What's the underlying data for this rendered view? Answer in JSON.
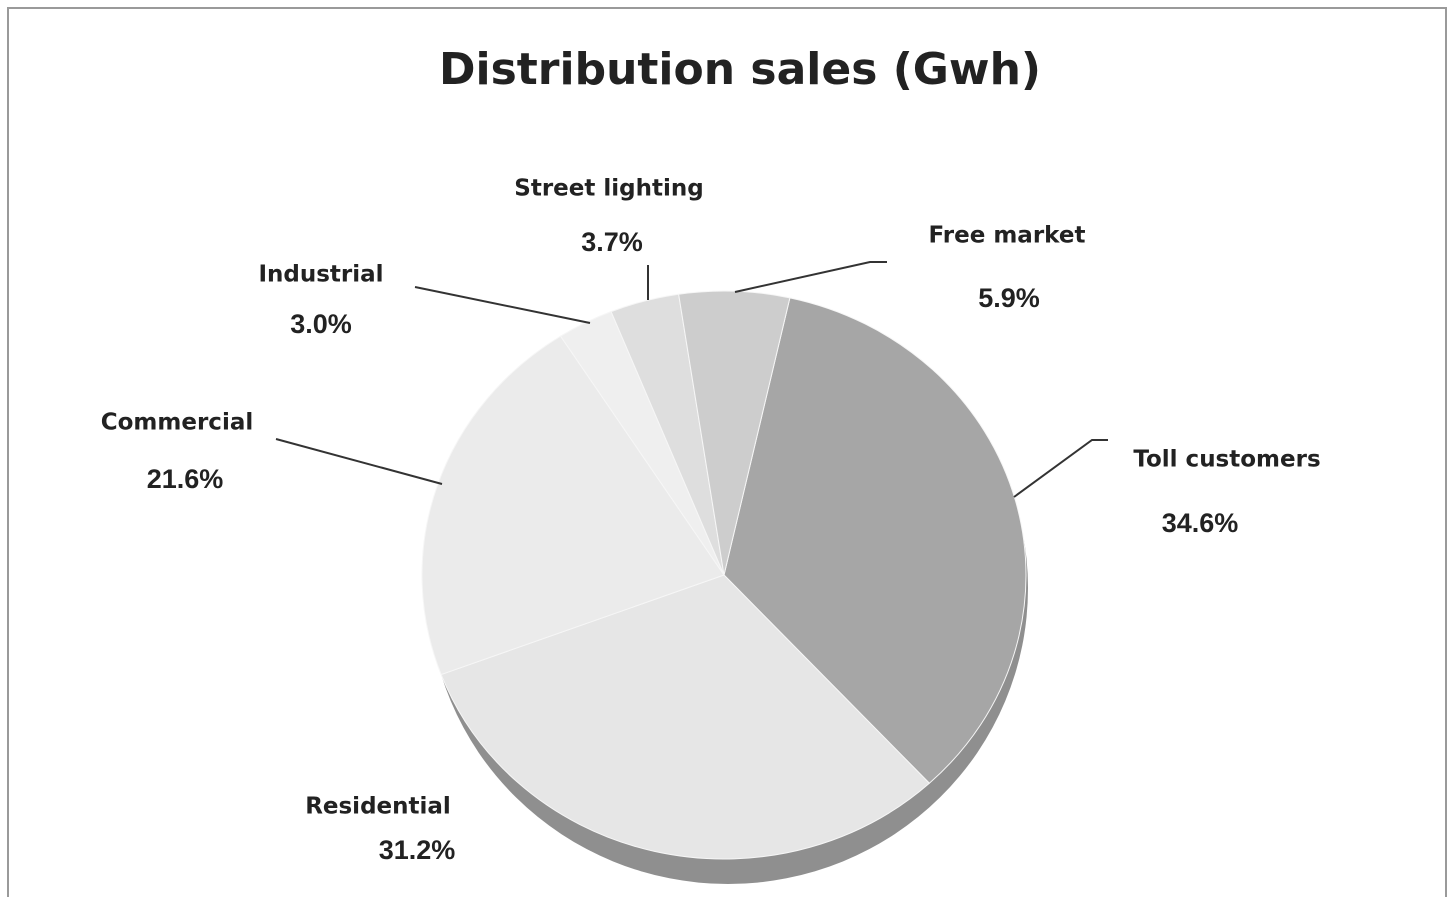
{
  "chart_data": {
    "type": "pie",
    "title": "Distribution sales (Gwh)",
    "categories": [
      "Toll customers",
      "Residential",
      "Commercial",
      "Industrial",
      "Street lighting",
      "Free market"
    ],
    "values": [
      34.6,
      31.2,
      21.6,
      3.0,
      3.7,
      5.9
    ],
    "value_labels": [
      "34.6%",
      "31.2%",
      "21.6%",
      "3.0%",
      "3.7%",
      "5.9%"
    ],
    "colors": [
      "#a6a6a6",
      "#e6e6e6",
      "#ebebeb",
      "#efefef",
      "#dedede",
      "#cdcdcd"
    ]
  }
}
